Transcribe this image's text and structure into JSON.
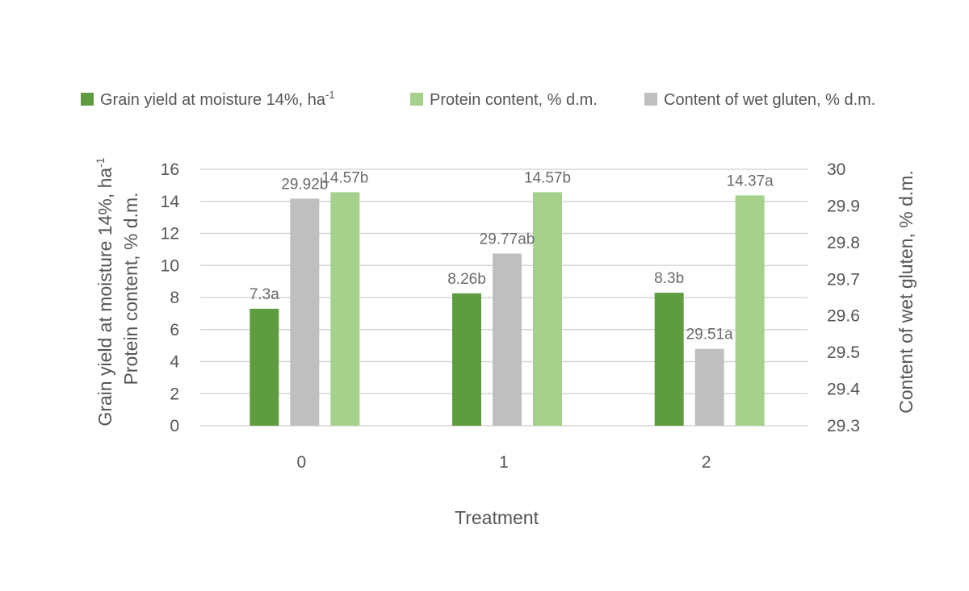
{
  "chart_data": {
    "type": "bar",
    "categories": [
      "0",
      "1",
      "2"
    ],
    "xlabel": "Treatment",
    "ylabel_left_line1": "Grain yield at moisture 14%, ha",
    "ylabel_left_line1_sup": "-1",
    "ylabel_left_line2": "Protein content, % d.m.",
    "ylabel_right": "Content of wet gluten, % d.m.",
    "ylim_left": [
      0,
      16
    ],
    "yticks_left": [
      0,
      2,
      4,
      6,
      8,
      10,
      12,
      14,
      16
    ],
    "ylim_right": [
      29.3,
      30
    ],
    "yticks_right": [
      "29.3",
      "29.4",
      "29.5",
      "29.6",
      "29.7",
      "29.8",
      "29.9",
      "30"
    ],
    "grid": true,
    "legend_position": "top",
    "series": [
      {
        "name": "Grain yield at moisture 14%, ha",
        "name_sup": "-1",
        "axis": "left",
        "color": "#5f9b3f",
        "values": [
          7.3,
          8.26,
          8.3
        ],
        "labels": [
          "7.3a",
          "8.26b",
          "8.3b"
        ]
      },
      {
        "name": "Content of wet gluten, % d.m.",
        "axis": "right",
        "color": "#bfbfbf",
        "values": [
          29.92,
          29.77,
          29.51
        ],
        "labels": [
          "29.92b",
          "29.77ab",
          "29.51a"
        ]
      },
      {
        "name": "Protein content, % d.m.",
        "axis": "left",
        "color": "#a6d18c",
        "values": [
          14.57,
          14.57,
          14.37
        ],
        "labels": [
          "14.57b",
          "14.57b",
          "14.37a"
        ]
      }
    ]
  }
}
